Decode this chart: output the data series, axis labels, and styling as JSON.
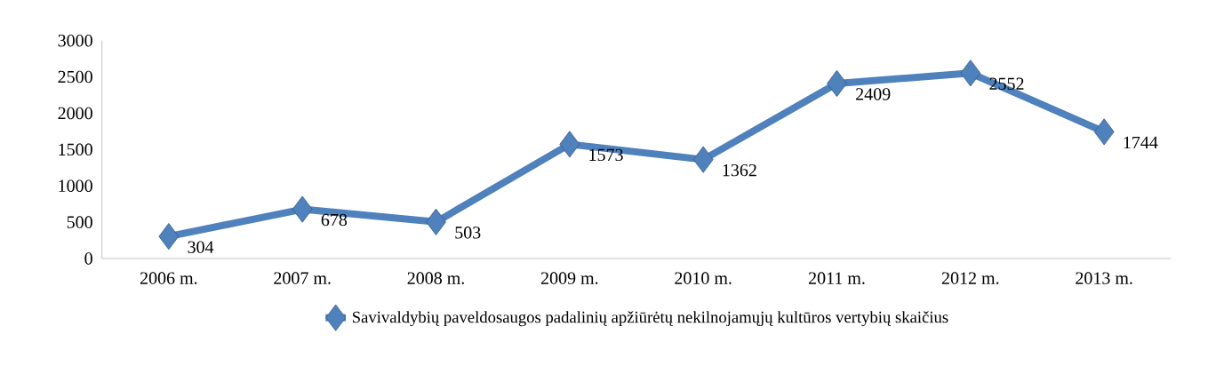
{
  "chart_data": {
    "type": "line",
    "categories": [
      "2006 m.",
      "2007 m.",
      "2008 m.",
      "2009 m.",
      "2010 m.",
      "2011 m.",
      "2012 m.",
      "2013 m."
    ],
    "series": [
      {
        "name": "Savivaldybių paveldosaugos padalinių apžiūrėtų nekilnojamųjų kultūros vertybių skaičius",
        "color": "#4f81bd",
        "values": [
          304,
          678,
          503,
          1573,
          1362,
          2409,
          2552,
          1744
        ]
      }
    ],
    "ylim": [
      0,
      3000
    ],
    "yticks": [
      0,
      500,
      1000,
      1500,
      2000,
      2500,
      3000
    ],
    "grid": false,
    "legend": "bottom",
    "marker": "diamond",
    "line_style": "solid",
    "data_labels": true
  }
}
